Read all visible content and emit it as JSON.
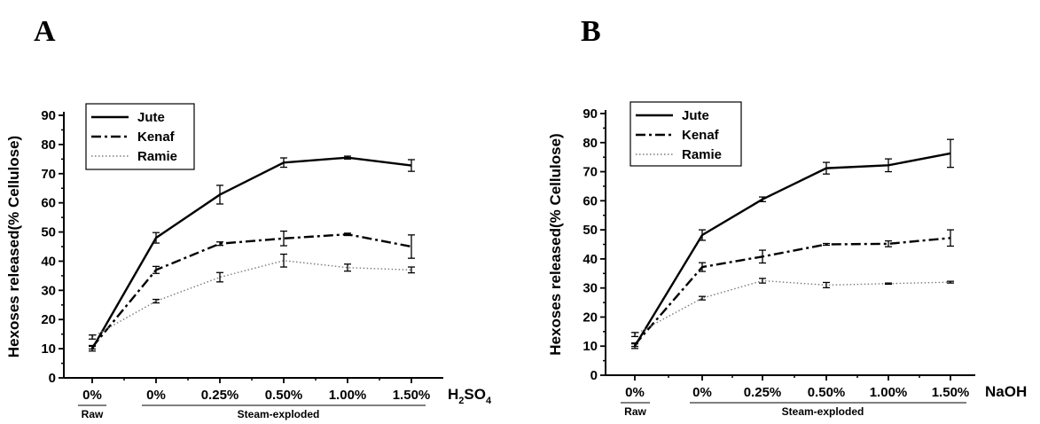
{
  "chart_data": [
    {
      "type": "line",
      "panel_label": "A",
      "categories": [
        "0%",
        "0%",
        "0.25%",
        "0.50%",
        "1.00%",
        "1.50%"
      ],
      "xlabel": "H2SO4",
      "xlabel_main": "H",
      "xlabel_sub1": "2",
      "xlabel_mid": "SO",
      "xlabel_sub2": "4",
      "ylabel": "Hexoses released(% Cellulose)",
      "ylim": [
        0,
        90
      ],
      "yticks": [
        0,
        10,
        20,
        30,
        40,
        50,
        60,
        70,
        80,
        90
      ],
      "group_labels": [
        "Raw",
        "Steam-exploded"
      ],
      "legend_position": "top-left",
      "series": [
        {
          "name": "Jute",
          "style": "solid",
          "values": [
            10.0,
            48.0,
            62.8,
            73.8,
            75.5,
            72.8
          ],
          "errors": [
            0.8,
            1.8,
            3.2,
            1.6,
            0.5,
            2.0
          ]
        },
        {
          "name": "Kenaf",
          "style": "dash-dot",
          "values": [
            10.5,
            37.0,
            46.0,
            47.8,
            49.2,
            45.0
          ],
          "errors": [
            0.6,
            1.2,
            0.6,
            2.5,
            0.4,
            4.0
          ]
        },
        {
          "name": "Ramie",
          "style": "dotted",
          "values": [
            14.0,
            26.3,
            34.5,
            40.2,
            37.8,
            37.0
          ],
          "errors": [
            0.7,
            0.6,
            1.6,
            2.2,
            1.2,
            1.0
          ]
        }
      ]
    },
    {
      "type": "line",
      "panel_label": "B",
      "categories": [
        "0%",
        "0%",
        "0.25%",
        "0.50%",
        "1.00%",
        "1.50%"
      ],
      "xlabel": "NaOH",
      "ylabel": "Hexoses released(% Cellulose)",
      "ylim": [
        0,
        90
      ],
      "yticks": [
        0,
        10,
        20,
        30,
        40,
        50,
        60,
        70,
        80,
        90
      ],
      "group_labels": [
        "Raw",
        "Steam-exploded"
      ],
      "legend_position": "top-left",
      "series": [
        {
          "name": "Jute",
          "style": "solid",
          "values": [
            10.0,
            48.2,
            60.5,
            71.2,
            72.2,
            76.3
          ],
          "errors": [
            0.8,
            1.8,
            0.8,
            2.0,
            2.2,
            4.8
          ]
        },
        {
          "name": "Kenaf",
          "style": "dash-dot",
          "values": [
            10.5,
            37.2,
            40.8,
            45.0,
            45.2,
            47.2
          ],
          "errors": [
            0.6,
            1.5,
            2.2,
            0.3,
            1.0,
            2.8
          ]
        },
        {
          "name": "Ramie",
          "style": "dotted",
          "values": [
            14.0,
            26.5,
            32.5,
            31.0,
            31.5,
            32.0
          ],
          "errors": [
            0.7,
            0.6,
            0.8,
            0.9,
            0.2,
            0.3
          ]
        }
      ]
    }
  ],
  "colors": {
    "line": "#000000",
    "background": "#ffffff"
  }
}
